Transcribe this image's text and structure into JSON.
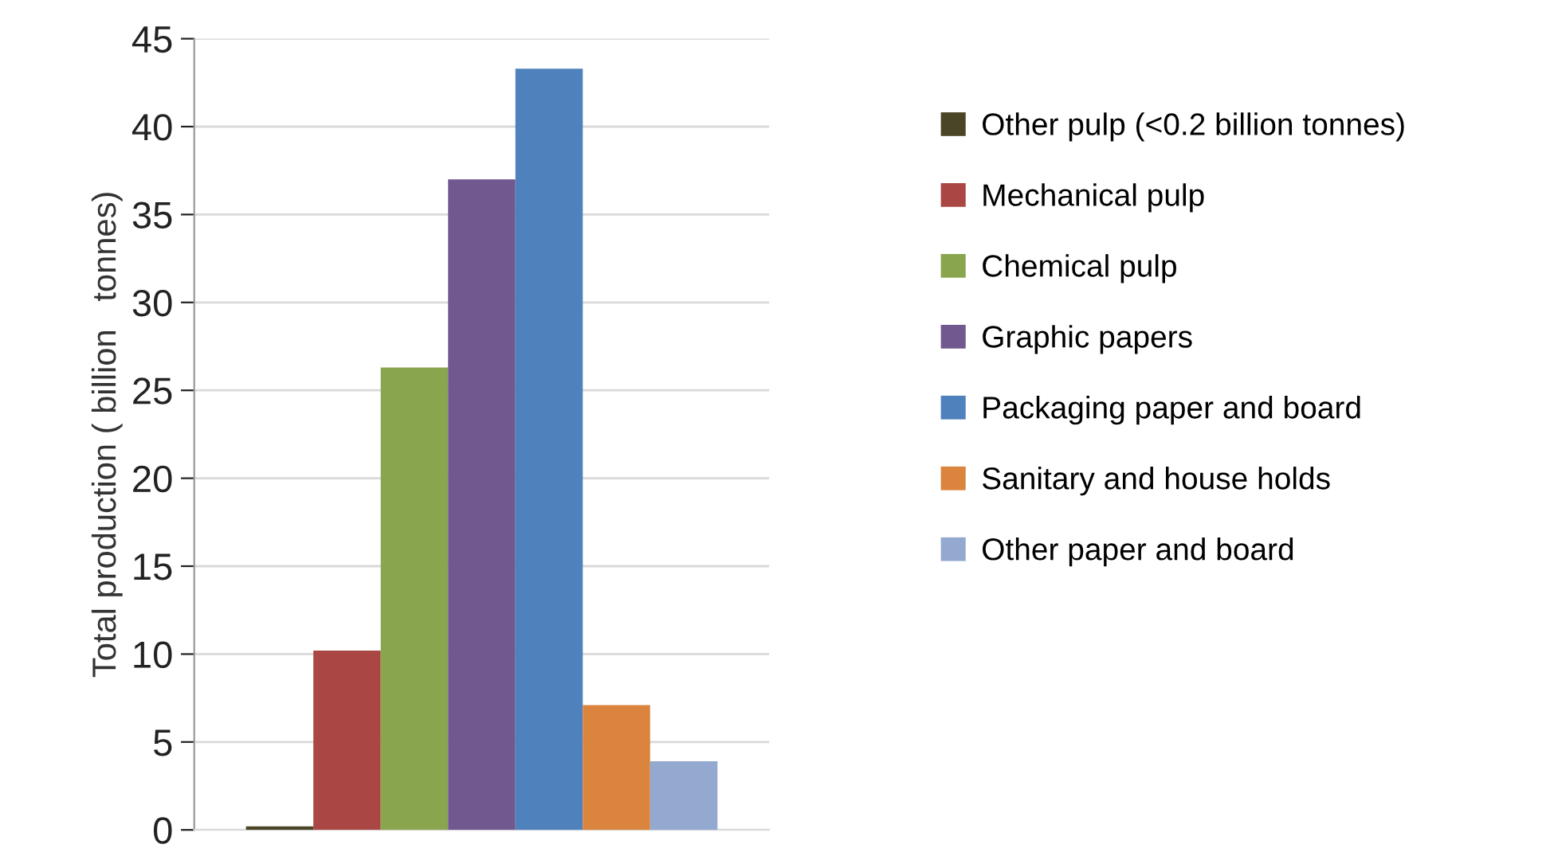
{
  "chart_data": {
    "type": "bar",
    "ylabel": "Total production ( billion   tonnes)",
    "categories": [
      null
    ],
    "series": [
      {
        "name": "Other pulp (<0.2 billion tonnes)",
        "color": "#4a4527",
        "values": [
          0.2
        ]
      },
      {
        "name": "Mechanical pulp",
        "color": "#aa4644",
        "values": [
          10.2
        ]
      },
      {
        "name": "Chemical pulp",
        "color": "#89a54e",
        "values": [
          26.3
        ]
      },
      {
        "name": "Graphic papers",
        "color": "#71588f",
        "values": [
          37.0
        ]
      },
      {
        "name": "Packaging paper and board",
        "color": "#4f81bd",
        "values": [
          43.3
        ]
      },
      {
        "name": "Sanitary and house holds",
        "color": "#db843d",
        "values": [
          7.1
        ]
      },
      {
        "name": "Other paper and board",
        "color": "#93a9cf",
        "values": [
          3.9
        ]
      }
    ],
    "ylim": [
      0,
      45
    ],
    "yticks": [
      0,
      5,
      10,
      15,
      20,
      25,
      30,
      35,
      40,
      45
    ],
    "grid": "y",
    "legend": "right"
  }
}
